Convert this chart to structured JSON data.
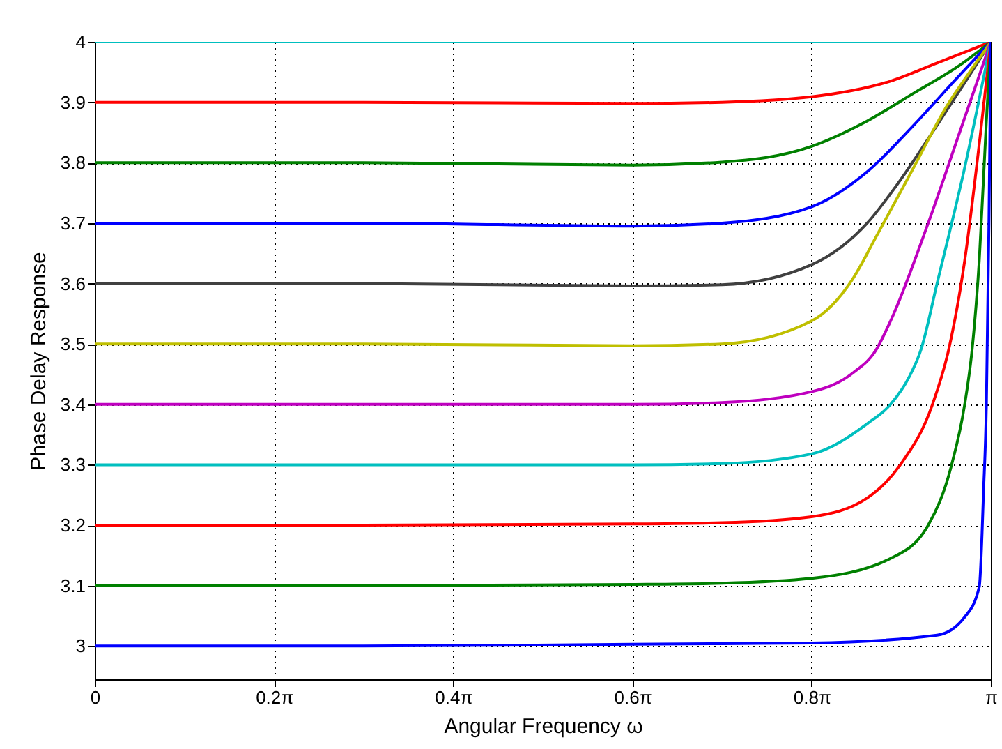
{
  "chart_data": {
    "type": "line",
    "xlabel": "Angular Frequency ω",
    "ylabel": "Phase Delay Response",
    "xlim": [
      0,
      3.1416
    ],
    "ylim": [
      2.945,
      4
    ],
    "xticks": [
      0,
      {
        "value": 0.6283,
        "label": "0.2π"
      },
      {
        "value": 1.2566,
        "label": "0.4π"
      },
      {
        "value": 1.885,
        "label": "0.6π"
      },
      {
        "value": 2.5133,
        "label": "0.8π"
      },
      {
        "value": 3.1416,
        "label": "π"
      }
    ],
    "yticks": [
      3,
      3.1,
      3.2,
      3.3,
      3.4,
      3.5,
      3.6,
      3.7,
      3.8,
      3.9,
      4
    ],
    "grid": true,
    "legend": false,
    "line_style": "solid",
    "marker": "none",
    "series": [
      {
        "color": "#00bfbf",
        "x": [
          0,
          3.1416
        ],
        "values": [
          4,
          4
        ]
      },
      {
        "color": "#ff0000",
        "x": [
          0,
          0.942,
          1.885,
          2.199,
          2.513,
          2.79,
          2.953,
          3.1416
        ],
        "values": [
          3.9,
          3.9,
          3.898,
          3.9,
          3.909,
          3.935,
          3.965,
          4
        ]
      },
      {
        "color": "#008000",
        "x": [
          0,
          0.942,
          1.885,
          2.199,
          2.513,
          2.708,
          2.871,
          3.035,
          3.1416
        ],
        "values": [
          3.8,
          3.8,
          3.796,
          3.801,
          3.827,
          3.869,
          3.915,
          3.962,
          4
        ]
      },
      {
        "color": "#0000ff",
        "x": [
          0,
          0.942,
          1.885,
          2.199,
          2.513,
          2.708,
          2.871,
          3.019,
          3.1416
        ],
        "values": [
          3.7,
          3.7,
          3.695,
          3.7,
          3.727,
          3.785,
          3.862,
          3.938,
          4
        ]
      },
      {
        "color": "#404040",
        "x": [
          0,
          0.942,
          1.885,
          2.199,
          2.513,
          2.708,
          2.821,
          2.953,
          3.069,
          3.1416
        ],
        "values": [
          3.6,
          3.6,
          3.596,
          3.598,
          3.631,
          3.7,
          3.769,
          3.862,
          3.946,
          4
        ]
      },
      {
        "color": "#bfbf00",
        "x": [
          0,
          0.942,
          1.885,
          2.199,
          2.513,
          2.658,
          2.739,
          2.871,
          2.985,
          3.085,
          3.1416
        ],
        "values": [
          3.5,
          3.5,
          3.497,
          3.5,
          3.538,
          3.608,
          3.677,
          3.792,
          3.892,
          3.962,
          4
        ]
      },
      {
        "color": "#bf00bf",
        "x": [
          0,
          0.942,
          1.885,
          2.199,
          2.513,
          2.658,
          2.739,
          2.79,
          2.922,
          3.035,
          3.1416
        ],
        "values": [
          3.4,
          3.4,
          3.4,
          3.403,
          3.421,
          3.452,
          3.49,
          3.538,
          3.7,
          3.854,
          4
        ]
      },
      {
        "color": "#00bfbf",
        "x": [
          0,
          0.942,
          1.885,
          2.199,
          2.513,
          2.708,
          2.79,
          2.856,
          2.897,
          2.953,
          3.05,
          3.1416
        ],
        "values": [
          3.3,
          3.3,
          3.3,
          3.302,
          3.318,
          3.368,
          3.4,
          3.446,
          3.491,
          3.6,
          3.792,
          4
        ]
      },
      {
        "color": "#ff0000",
        "x": [
          0,
          0.942,
          1.885,
          2.199,
          2.513,
          2.708,
          2.821,
          2.937,
          2.994,
          3.05,
          3.101,
          3.1416
        ],
        "values": [
          3.2,
          3.2,
          3.202,
          3.204,
          3.214,
          3.245,
          3.298,
          3.4,
          3.491,
          3.638,
          3.831,
          4
        ]
      },
      {
        "color": "#008000",
        "x": [
          0,
          0.942,
          1.885,
          2.199,
          2.513,
          2.79,
          2.922,
          3.003,
          3.05,
          3.076,
          3.101,
          3.126,
          3.1416
        ],
        "values": [
          3.1,
          3.1,
          3.102,
          3.104,
          3.112,
          3.145,
          3.2,
          3.298,
          3.4,
          3.491,
          3.638,
          3.869,
          4
        ]
      },
      {
        "color": "#0000ff",
        "x": [
          0,
          0.942,
          1.885,
          2.199,
          2.513,
          2.953,
          3.05,
          3.101,
          3.116,
          3.126,
          3.135,
          3.1416
        ],
        "values": [
          3.0,
          3.0,
          3.003,
          3.004,
          3.005,
          3.018,
          3.048,
          3.098,
          3.256,
          3.4,
          3.7,
          4
        ]
      }
    ]
  }
}
